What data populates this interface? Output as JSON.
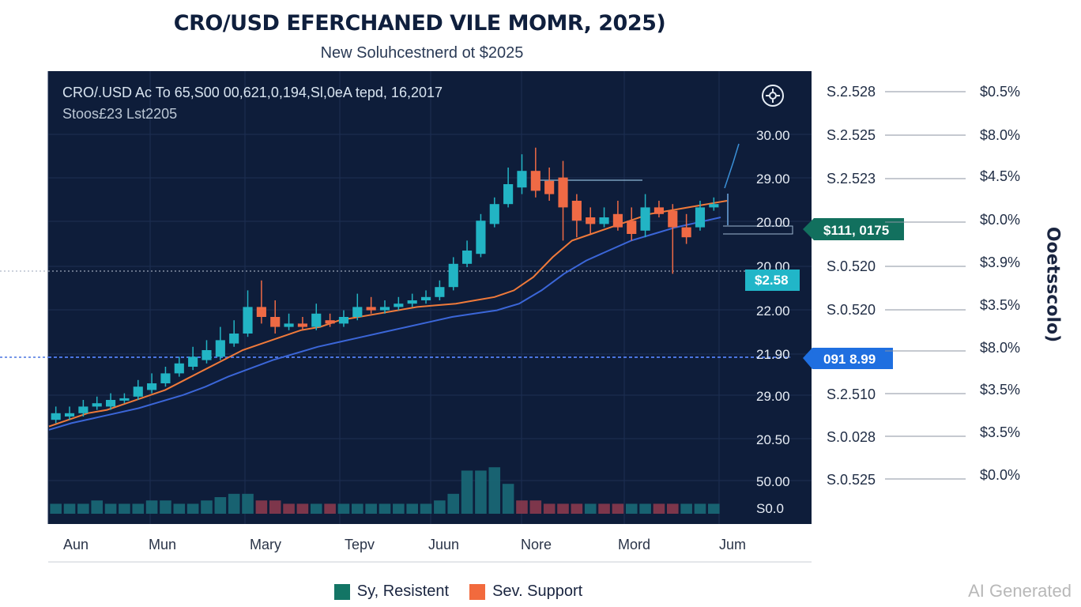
{
  "header": {
    "title": "CRO/USD EFERCHANED VILE MOMR, 2025)",
    "subtitle": "New Soluhcestnerd ot $2025"
  },
  "panel": {
    "line1": "CRO/.USD Ac To 65,S00 00,621,0,194,Sl,0eA tepd, 16,2017",
    "line2": "Stoos£23 Lst2205",
    "settings_icon": "settings-icon"
  },
  "side_label": "Ooetsscolo)",
  "watermark": "AI Generated",
  "legend": [
    {
      "label": "Sy, Resistent",
      "color": "#137565"
    },
    {
      "label": "Sev. Support",
      "color": "#f26a3d"
    }
  ],
  "colors": {
    "panel_bg": "#0e1d3a",
    "bull": "#22b4c4",
    "bear": "#ef6a45",
    "ma_fast": "#f07a3a",
    "ma_slow": "#3b66d8",
    "badge_green": "#12705e",
    "badge_cyan": "#21b6c8",
    "badge_blue": "#1f6fe0"
  },
  "badges": {
    "upper": "$111, 0175",
    "mid": "$2.58",
    "lower": "091 8.99"
  },
  "chart_data": {
    "type": "candlestick",
    "title": "CRO/USD EFERCHANED VILE MOMR, 2025)",
    "x_tick_labels": [
      "Aun",
      "Mun",
      "Mary",
      "Tepv",
      "Juun",
      "Nore",
      "Mord",
      "Jum"
    ],
    "y_axis_labels": [
      "30.00",
      "29.00",
      "20.00",
      "20.00",
      "22.00",
      "21.90",
      "29.00",
      "20.50",
      "50.00",
      "S0.0"
    ],
    "y_range": [
      0,
      100
    ],
    "right_axis_left": [
      "S.2.528",
      "S.2.525",
      "S.2.523",
      "S.0.520",
      "S.0.520",
      "S.2.510",
      "S.0.028",
      "S.0.525"
    ],
    "right_axis_right": [
      "$0.5%",
      "$8.0%",
      "$4.5%",
      "$0.0%",
      "$3.9%",
      "$3.5%",
      "$8.0%",
      "$3.5%",
      "$3.5%",
      "$0.0%"
    ],
    "candles": [
      {
        "o": 14,
        "c": 16,
        "h": 18,
        "l": 13
      },
      {
        "o": 15,
        "c": 16,
        "h": 18,
        "l": 14
      },
      {
        "o": 16,
        "c": 18,
        "h": 20,
        "l": 15
      },
      {
        "o": 18,
        "c": 19,
        "h": 21,
        "l": 17
      },
      {
        "o": 18,
        "c": 20,
        "h": 22,
        "l": 17
      },
      {
        "o": 20,
        "c": 20.5,
        "h": 22,
        "l": 19
      },
      {
        "o": 21,
        "c": 24,
        "h": 26,
        "l": 20
      },
      {
        "o": 23,
        "c": 25,
        "h": 28,
        "l": 22
      },
      {
        "o": 25,
        "c": 28,
        "h": 30,
        "l": 24
      },
      {
        "o": 28,
        "c": 31,
        "h": 33,
        "l": 27
      },
      {
        "o": 30,
        "c": 33,
        "h": 36,
        "l": 29
      },
      {
        "o": 32,
        "c": 35,
        "h": 38,
        "l": 31
      },
      {
        "o": 33,
        "c": 38,
        "h": 42,
        "l": 32
      },
      {
        "o": 37,
        "c": 40,
        "h": 44,
        "l": 36
      },
      {
        "o": 40,
        "c": 48,
        "h": 53,
        "l": 39
      },
      {
        "o": 48,
        "c": 45,
        "h": 56,
        "l": 43
      },
      {
        "o": 45,
        "c": 42,
        "h": 50,
        "l": 40
      },
      {
        "o": 42,
        "c": 43,
        "h": 46,
        "l": 41
      },
      {
        "o": 43,
        "c": 42,
        "h": 45,
        "l": 41
      },
      {
        "o": 42,
        "c": 46,
        "h": 49,
        "l": 41
      },
      {
        "o": 44,
        "c": 43,
        "h": 46,
        "l": 42
      },
      {
        "o": 43,
        "c": 45,
        "h": 47,
        "l": 42
      },
      {
        "o": 45,
        "c": 48,
        "h": 52,
        "l": 44
      },
      {
        "o": 48,
        "c": 47,
        "h": 51,
        "l": 46
      },
      {
        "o": 47,
        "c": 48,
        "h": 50,
        "l": 46
      },
      {
        "o": 48,
        "c": 49,
        "h": 51,
        "l": 47
      },
      {
        "o": 49,
        "c": 50,
        "h": 52,
        "l": 48
      },
      {
        "o": 50,
        "c": 51,
        "h": 53,
        "l": 49
      },
      {
        "o": 51,
        "c": 54,
        "h": 56,
        "l": 50
      },
      {
        "o": 54,
        "c": 61,
        "h": 63,
        "l": 53
      },
      {
        "o": 61,
        "c": 65,
        "h": 68,
        "l": 60
      },
      {
        "o": 64,
        "c": 74,
        "h": 76,
        "l": 63
      },
      {
        "o": 73,
        "c": 79,
        "h": 81,
        "l": 72
      },
      {
        "o": 79,
        "c": 85,
        "h": 90,
        "l": 78
      },
      {
        "o": 84,
        "c": 89,
        "h": 94,
        "l": 82
      },
      {
        "o": 89,
        "c": 83,
        "h": 96,
        "l": 81
      },
      {
        "o": 86,
        "c": 82,
        "h": 90,
        "l": 80
      },
      {
        "o": 87,
        "c": 78,
        "h": 92,
        "l": 68
      },
      {
        "o": 80,
        "c": 74,
        "h": 82,
        "l": 69
      },
      {
        "o": 75,
        "c": 73,
        "h": 78,
        "l": 70
      },
      {
        "o": 73,
        "c": 75,
        "h": 78,
        "l": 72
      },
      {
        "o": 76,
        "c": 72,
        "h": 80,
        "l": 71
      },
      {
        "o": 74,
        "c": 70,
        "h": 78,
        "l": 68
      },
      {
        "o": 71,
        "c": 78,
        "h": 82,
        "l": 69
      },
      {
        "o": 78,
        "c": 76,
        "h": 80,
        "l": 75
      },
      {
        "o": 77,
        "c": 72,
        "h": 79,
        "l": 58
      },
      {
        "o": 72,
        "c": 69,
        "h": 76,
        "l": 67
      },
      {
        "o": 72,
        "c": 78,
        "h": 80,
        "l": 71
      },
      {
        "o": 78,
        "c": 79,
        "h": 81,
        "l": 77
      }
    ],
    "volume": [
      3,
      3,
      3,
      4,
      3,
      3,
      3,
      4,
      4,
      3,
      3,
      4,
      5,
      6,
      6,
      4,
      4,
      3,
      3,
      3,
      3,
      3,
      3,
      3,
      3,
      3,
      3,
      3,
      4,
      6,
      13,
      13,
      14,
      9,
      4,
      4,
      3,
      3,
      3,
      3,
      3,
      3,
      3,
      3,
      3,
      3,
      3,
      3,
      3
    ],
    "volume_direction": [
      "up",
      "up",
      "up",
      "up",
      "up",
      "up",
      "up",
      "up",
      "up",
      "up",
      "up",
      "up",
      "up",
      "up",
      "up",
      "down",
      "down",
      "down",
      "down",
      "up",
      "down",
      "up",
      "up",
      "up",
      "up",
      "up",
      "up",
      "up",
      "up",
      "up",
      "up",
      "up",
      "up",
      "up",
      "down",
      "down",
      "down",
      "down",
      "down",
      "up",
      "down",
      "down",
      "up",
      "up",
      "down",
      "down",
      "up",
      "up",
      "up"
    ],
    "ma_fast": [
      12,
      14,
      16,
      17,
      19,
      21,
      23,
      26,
      29,
      32,
      35,
      37,
      39,
      41,
      42,
      44,
      45,
      46,
      47,
      48,
      48.5,
      49,
      50,
      51,
      53,
      57,
      63,
      68,
      70,
      72,
      74,
      76,
      77,
      78,
      79,
      80
    ],
    "ma_slow": [
      11,
      13,
      14.5,
      16,
      17.5,
      19.5,
      21.5,
      24,
      27,
      29.5,
      32,
      34,
      36,
      37.5,
      39,
      40.5,
      42,
      43.5,
      45,
      46,
      47,
      49,
      53,
      58,
      62,
      65,
      68,
      70,
      72,
      73.5,
      75
    ],
    "ma_fast_label": "Sy, Resistent",
    "ma_slow_label": "Sev. Support"
  }
}
